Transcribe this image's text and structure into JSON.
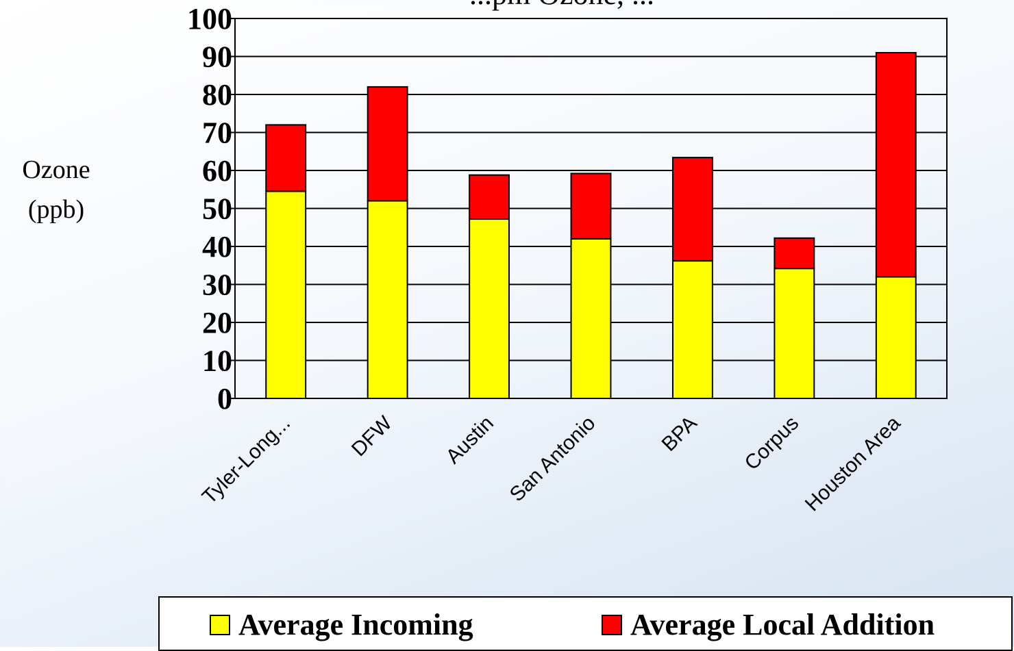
{
  "chart_data": {
    "type": "bar",
    "stacked": true,
    "title": "...pm Ozone, ...",
    "ylabel": "Ozone (ppb)",
    "ylabel_lines": [
      "Ozone",
      "(ppb)"
    ],
    "ylim": [
      0,
      100
    ],
    "yticks": [
      "0",
      "10",
      "20",
      "30",
      "40",
      "50",
      "60",
      "70",
      "80",
      "90",
      "100"
    ],
    "grid": true,
    "categories": [
      "Tyler-Long...",
      "DFW",
      "Austin",
      "San Antonio",
      "BPA",
      "Corpus",
      "Houston Area"
    ],
    "series": [
      {
        "name": "Average Incoming",
        "color": "#ffff00",
        "values": [
          54.5,
          52,
          47.2,
          42,
          36.2,
          34.2,
          32
        ]
      },
      {
        "name": "Average Local Addition",
        "color": "#ff0000",
        "values": [
          17.5,
          30,
          11.6,
          17.2,
          27.2,
          8,
          59
        ]
      }
    ],
    "legend_position": "bottom"
  }
}
